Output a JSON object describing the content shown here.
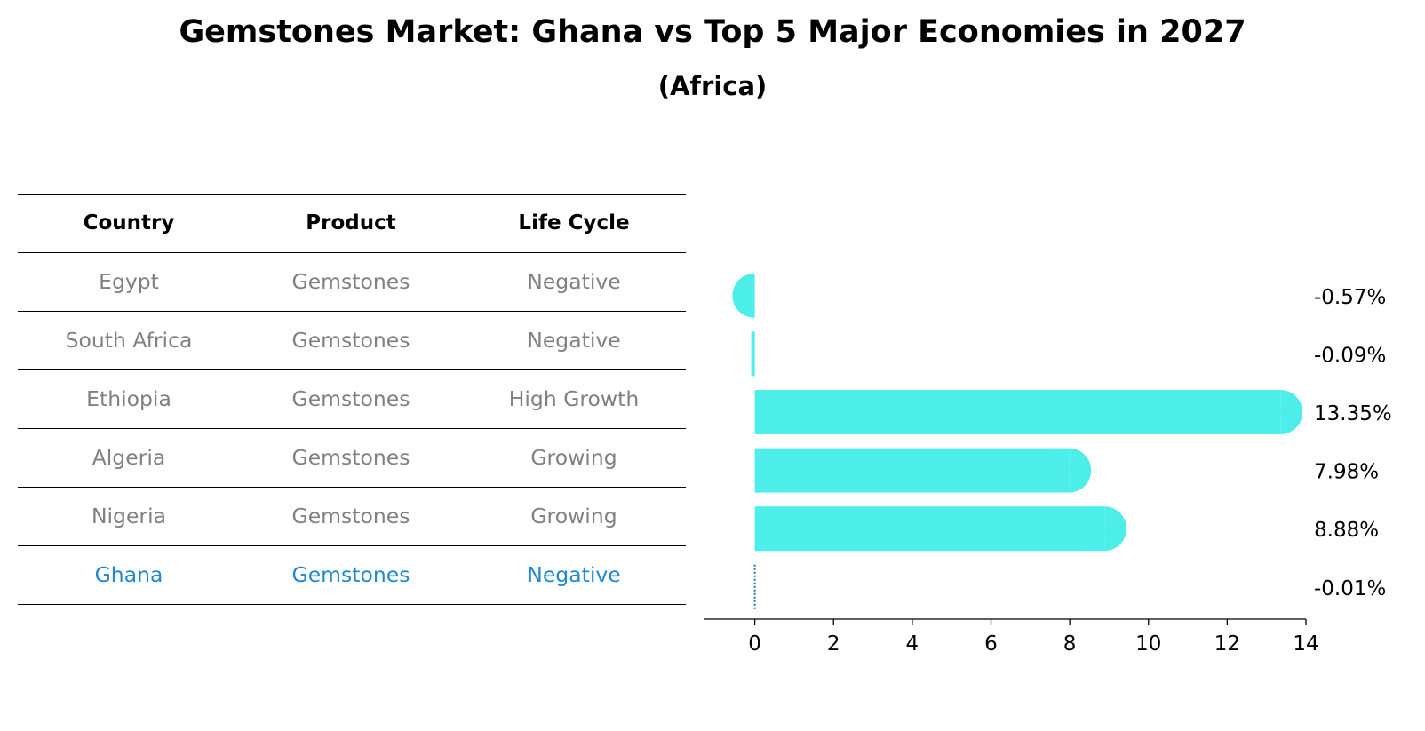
{
  "title": "Gemstones Market: Ghana vs Top 5 Major Economies in 2027",
  "subtitle": "(Africa)",
  "table": {
    "headers": [
      "Country",
      "Product",
      "Life Cycle"
    ],
    "rows": [
      {
        "country": "Egypt",
        "product": "Gemstones",
        "life_cycle": "Negative"
      },
      {
        "country": "South Africa",
        "product": "Gemstones",
        "life_cycle": "Negative"
      },
      {
        "country": "Ethiopia",
        "product": "Gemstones",
        "life_cycle": "High Growth"
      },
      {
        "country": "Algeria",
        "product": "Gemstones",
        "life_cycle": "Growing"
      },
      {
        "country": "Nigeria",
        "product": "Gemstones",
        "life_cycle": "Growing"
      },
      {
        "country": "Ghana",
        "product": "Gemstones",
        "life_cycle": "Negative"
      }
    ],
    "highlight_row": "Ghana",
    "text_color": "#808080",
    "highlight_color": "#1f88d0"
  },
  "chart_data": {
    "type": "bar",
    "orientation": "horizontal",
    "categories": [
      "Egypt",
      "South Africa",
      "Ethiopia",
      "Algeria",
      "Nigeria",
      "Ghana"
    ],
    "values": [
      -0.57,
      -0.09,
      13.35,
      7.98,
      8.88,
      -0.01
    ],
    "value_labels": [
      "-0.57%",
      "-0.09%",
      "13.35%",
      "7.98%",
      "8.88%",
      "-0.01%"
    ],
    "xlim": [
      -1.3,
      14
    ],
    "xticks": [
      0,
      2,
      4,
      6,
      8,
      10,
      12,
      14
    ],
    "xlabel": "",
    "ylabel": "",
    "grid": false,
    "bar_color": "#4deeea",
    "highlight_color": "#1f77b4"
  }
}
